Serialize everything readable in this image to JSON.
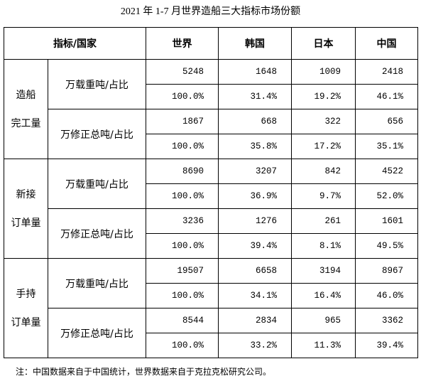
{
  "title": "2021 年 1-7 月世界造船三大指标市场份额",
  "table": {
    "header": [
      "指标/国家",
      "世界",
      "韩国",
      "日本",
      "中国"
    ],
    "groups": [
      {
        "label": [
          "造船",
          "完工量"
        ],
        "rows": [
          {
            "unit": "万载重吨/占比",
            "values": [
              "5248",
              "1648",
              "1009",
              "2418"
            ],
            "shares": [
              "100.0%",
              "31.4%",
              "19.2%",
              "46.1%"
            ]
          },
          {
            "unit": "万修正总吨/占比",
            "values": [
              "1867",
              "668",
              "322",
              "656"
            ],
            "shares": [
              "100.0%",
              "35.8%",
              "17.2%",
              "35.1%"
            ]
          }
        ]
      },
      {
        "label": [
          "新接",
          "订单量"
        ],
        "rows": [
          {
            "unit": "万载重吨/占比",
            "values": [
              "8690",
              "3207",
              "842",
              "4522"
            ],
            "shares": [
              "100.0%",
              "36.9%",
              "9.7%",
              "52.0%"
            ]
          },
          {
            "unit": "万修正总吨/占比",
            "values": [
              "3236",
              "1276",
              "261",
              "1601"
            ],
            "shares": [
              "100.0%",
              "39.4%",
              "8.1%",
              "49.5%"
            ]
          }
        ]
      },
      {
        "label": [
          "手持",
          "订单量"
        ],
        "rows": [
          {
            "unit": "万载重吨/占比",
            "values": [
              "19507",
              "6658",
              "3194",
              "8967"
            ],
            "shares": [
              "100.0%",
              "34.1%",
              "16.4%",
              "46.0%"
            ]
          },
          {
            "unit": "万修正总吨/占比",
            "values": [
              "8544",
              "2834",
              "965",
              "3362"
            ],
            "shares": [
              "100.0%",
              "33.2%",
              "11.3%",
              "39.4%"
            ]
          }
        ]
      }
    ]
  },
  "footnote": "注：中国数据来自于中国统计，世界数据来自于克拉克松研究公司。"
}
